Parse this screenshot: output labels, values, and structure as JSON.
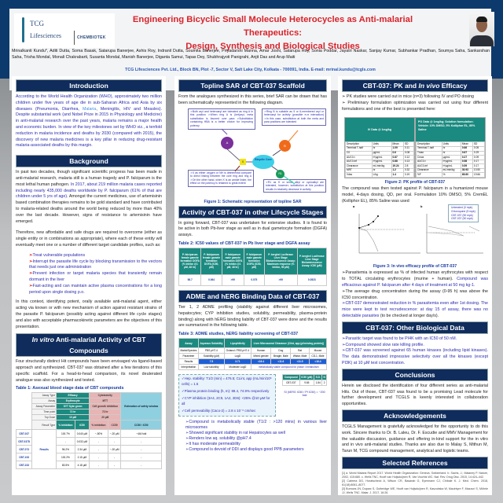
{
  "header": {
    "logo": {
      "line1": "TCG",
      "line2": "Lifesciences",
      "partner": "CHEMBIOTEK"
    },
    "title_line1": "Engineering Bicyclic Small Molecule Heterocycles as Anti-malarial Therapeutics:",
    "title_line2": "Design, Synthesis and Biological Studies",
    "authors": "Mrinalkanti Kundu*, Aditi Dutta, Soma Basak, Satarupa Banerjee, Ashis Roy, Indranil Dutta, Soumita Banerjee, Priyadarshi Manna, Amar Joshi, Satarupa Roy, Sonia Poddar, Jayatri Naskar, Sanjay Kumar, Subhankar Pradhan, Soumya Saha, Sankarshan Saha, Trisha Mondal, Monali Chakrabarti, Susanta Mondal, Manish Banerjee, Diganta Samui, Tapas Dey, Shubhrajyoti Panigrahi, Anjit Das and Arup Maiti",
    "affiliation": "TCG Lifesciences Pvt. Ltd., Block BN, Plot -7, Sector V, Salt Lake City, Kolkata - 700091, India. E-mail: mrinal.kundu@tcgls.com"
  },
  "intro": {
    "heading": "Introduction",
    "p1a": "According to the World Health Organization (WHO), approximately two million children under five years of age die in sub-Saharan Africa and Asia by six diseases (Pneumonia, Diarrhea, ",
    "p1link": "Malaria",
    "p1b": ", Meningitis, HIV and Measles). Despite substantial work (and Nobel Prize in 2015 in Physiology and Medicine) in anti-malarial research over the past years, malaria remains a major health and economic burden. In view of the key milestones set by WHO viz., a tenfold reduction in malaria incidence and deaths by 2030 (compared with 2015), the discovery of new malaria medicines is a key pillar in reducing drug-resistant malaria-associated deaths by this margin."
  },
  "background": {
    "heading": "Background",
    "p1a": "In past two decades, though significant scientific progress has been made in anti-malarial research, malaria still is a human tragedy and P. falciparum is the most lethal human pathogen. ",
    "p1b": "In 2017, about 219 million malaria cases reported including nearly 435,000 deaths worldwide by P. falciparum (61% of that are children under 5 yrs of age).",
    "p1c": " Amongst the current medicines, use of artemisinin based combination therapies remains to be gold standard and have contributed to malaria-related deaths around the world being reduced by more than 40% over the last decade. However, signs of resistance to artemisinin have emerged.",
    "p2": "Therefore, new affordable and safe drugs are required to overcome (either as single entity or in combinations as appropriate), where each of these entity will eventually meet one or a number of different target candidate profiles, such as:",
    "bullets": [
      "Treat vulnerable populations",
      "Interrupt the parasite life cycle by blocking transmission to the vectors that needs just one administration",
      "Prevent infection or target malaria species that transiently remain dormant in the liver",
      "Fast-acting and can maintain active plasma concentrations for a long period upon single dosing p.o."
    ],
    "p3": "In this context, identifying potent, orally available anti-malarial agent, either acting via known or with new mechanism of action against resistant strains of the parasite P. falciparum (possibly acting against different life cycle stages) and also with acceptable pharmacokinetic parameters are the objectives of this presentation."
  },
  "invitro": {
    "heading_italic": "In vitro",
    "heading_rest": " Anti-malarial Activity of CBT Compounds",
    "p1": "Four structurally distinct Hit compounds have been envisaged via ligand-based approach and synthesized. CBT-037 was obtained after a few iterations of this specific scaffold. For a head-to-head comparison, its novel deuterated analogue was also synthesized and tested.",
    "table_title": "Table 1: Asexual blood stage data of CBT compounds",
    "labels": [
      "Assay Type",
      "Assay",
      "Assay Parameter",
      "Time point",
      "Top Dose",
      "Result Type"
    ],
    "efficacy": [
      "Efficacy",
      "Erythrocyte",
      "SYT Sybr green",
      "72 hr",
      "10 µM"
    ],
    "cytotox": [
      "Cytotoxicity",
      "MTT",
      "Cell growth inhibition",
      "72 hr",
      "20 µM"
    ],
    "safety": "Estimation of safety window",
    "result_types": [
      "% Inhibition",
      "IC50",
      "% Inhibition",
      "CC50",
      "CC50 / IC50"
    ],
    "results_label": "Results",
    "rows": [
      {
        "name": "CBT-037",
        "v": [
          "100.7%",
          "0.040 µM",
          "~-50%",
          "~-20 µM",
          "~444 fold"
        ]
      },
      {
        "name": "CBT-037D",
        "v": [
          "-",
          "0.032 µM",
          "-",
          "-",
          "-"
        ]
      },
      {
        "name": "CBT-073",
        "v": [
          "96.2%",
          "2.34 µM",
          "-",
          "~-20 µM",
          "-"
        ]
      },
      {
        "name": "CBT-193",
        "v": [
          "100.2%",
          "2.15 µM",
          "-",
          "-",
          "-"
        ]
      },
      {
        "name": "CBT-233",
        "v": [
          "83.5%",
          "4.18 µM",
          "-",
          "-",
          "-"
        ]
      }
    ]
  },
  "sar": {
    "heading": "Topline SAR of CBT-037 Scaffold",
    "p1": "From the analogues synthesized in this series, brief SAR can be drawn that has been schematically represented in the following diagram.",
    "box_a": "➢Both aryl and heteroaryl are tolerated as ring A in this position ➢When ring A is (het)aryl, meta substitution is favored over para ➢Substitution containing HBA is a better choice for improving potency",
    "box_b": "➢Ring B is suitable as 5 or 6-membered aryl or heteroaryl for activity (possible π-π interaction) ➢In this case, substitution at both the meta and para positions are tolerated",
    "box_x": "➢X as either oxygen or NH is detrimental compare to direct linking between the core ring and ring A ➢On the other hand, when X is an amide linker, the effect on the potency is retained to great extent",
    "box_r1": "➢R1 as H or small alkyl or cycloalkyl are tolerated, however, substitution at this position results in relatively decrease in activity",
    "nodes": {
      "a": "A",
      "b": "B",
      "x": "X",
      "r1": "R1",
      "core": "Bicyclic Core"
    },
    "caption": "Figure 1: Schematic representation of topline SAR"
  },
  "lifecycle": {
    "heading": "Activity of CBT-037 in other Lifecycle Stages",
    "p1": "In going forward, CBT-037 was undertaken for extensive studies. It is found to be active in both Pb-liver stage as well as in dual gametocyte formation (DGFA) assays.",
    "table_title": "Table 2: IC50 values of CBT-037 in Pb liver stage and DGFA assay",
    "headers": [
      "P. falciparum female gamete formation DGFA (% Inhibn @1 µM, 48 hr)",
      "P. falciparum female gamete formation DGFA (IC50, µM)",
      "P. falciparum male gamete formation DGFA (% Inhibn @1 µM, 48 hr)",
      "P. falciparum male gamete formation DGFA (IC50, µM)",
      "P. berghei Luciferase Liver Stage Bioluminescence Assay: Maximum response (% Inhibn, 50 µM)",
      "P. berghei Luciferase Liver Stage Bioluminescence Assay: IC50 (µM)"
    ],
    "values": [
      "56.7",
      "0.064",
      ">99",
      "0.075",
      ">99",
      "0.0523"
    ]
  },
  "adme": {
    "heading": "ADME and hERG Binding Data of CBT-037",
    "p1": "Tier 1, 2 ADME profiling (stability against different liver microsomes, hepatocytes; CYP inhibition studies, solubility, permeability, plasma-protein binding) along with hERG binding liability of CBT-037 were done and the results are summarized in the following table.",
    "table_title": "Table 3: ADME studies, hERG liability screening of CBT-037",
    "h": [
      "Assay",
      "Aqueous Solubility",
      "Lipophilicity",
      "Liver Microsomal Clearance (Clint, app (µl/min/mg protein))"
    ],
    "row_labels": [
      "Matrix/Species",
      "Parameter",
      "Results",
      "Interpretation"
    ],
    "matrix": [
      "PBS pH7.4",
      "Octanol / PBS pH7.4",
      "Human",
      "Dog",
      "Rat",
      "Mouse"
    ],
    "parameter": [
      "Solubility (µM)",
      "LogD",
      "Mixed gender",
      "Beagle, Male",
      "Wistar, Male",
      "CD-1, Male"
    ],
    "results": [
      "7.5",
      "3.71",
      "<16.4",
      "<11.6",
      "<11.5",
      "<16.4"
    ],
    "interp": [
      "Low solubility",
      "Moderate LogD",
      "metabolically stable compound for phase I metabolism"
    ],
    "box": [
      "✓Hep. stability: T1/2 (min) = 476.5; CLint, app (mL/min/10⁶ cells) = 1.5",
      "✓Plasma protein binding (h, m): 88.4, 74.9% respectively",
      "✓CYP inhibition (3A4, 2C9, 1A2, 2D6): <25% @10 µM for all",
      "✓Cell permeability (Caco-2) = 2.8 x 10⁻⁶ cm/sec"
    ],
    "herg_headers": [
      "Compound",
      "IC50 (µM)",
      "S.D.",
      "N"
    ],
    "herg_row": [
      "CBT-037",
      "9.65",
      "1.84",
      "2"
    ],
    "herg_si": "SI (hERG IC50 / Pf IC50) = ~200 fold",
    "bullets": [
      "Compound is metabolically stable (T1/2 : >120 mins) in various liver microsomes",
      "Showed significant stability in rat Hepatocytes as well",
      "Renders low aq. solubility @pH7.4",
      "It has moderate permeability",
      "Compound is devoid of DDI and displays good PPB parameters"
    ]
  },
  "pk": {
    "heading_a": "CBT-037: PK and ",
    "heading_i": "In vivo",
    "heading_b": " Efficacy",
    "bullets": [
      "PK studies were carried out in mice (n=3) following IV and PO dosing",
      "Preliminary formulation optimization was carried out using four different formulations and one of the best is presented here:"
    ],
    "iv_title": "IV Data @ 1mg/kg",
    "po_title": "PO Data @ 1mg/kg; Solution formulation: Vehicle: 10% DMSO, 5% Kolliphor EL, 85% Saline",
    "cols": [
      "Description",
      "Units",
      "Mean",
      "SD"
    ],
    "iv_rows": [
      [
        "Terminal T-half",
        "hr",
        "1.09",
        "0.11"
      ],
      [
        "C0",
        "µg/mL",
        "0.6",
        "0.08"
      ],
      [
        "AUC0-t",
        "h*µg/mL",
        "0.87",
        "0.12"
      ],
      [
        "AUC0-inf",
        "h*µg/mL",
        "0.88",
        "0.13"
      ],
      [
        "Clearance",
        "mL/min/kg",
        "19.24",
        "2.8"
      ],
      [
        "MRT",
        "hr",
        "1.2",
        "0.32"
      ],
      [
        "Vdss",
        "L/kg",
        "1.4",
        "0.19"
      ]
    ],
    "po_rows": [
      [
        "Terminal T-half",
        "hr",
        "0.66",
        "0.05"
      ],
      [
        "Tmax",
        "hr",
        "0.67",
        "0.29"
      ],
      [
        "Cmax",
        "µg/mL",
        "0.27",
        "0.09"
      ],
      [
        "AUC0-t",
        "h*µg/mL",
        "0.58",
        "0.17"
      ],
      [
        "AUC0-inf",
        "h*µg/mL",
        "0.59",
        "0.17"
      ],
      [
        "Clearance",
        "mL/min/kg",
        "30.93",
        "10.50"
      ],
      [
        "%F",
        "%",
        "65.60",
        "19.66"
      ]
    ],
    "fig2": "Figure 2: PK profile of CBT-037",
    "p2": "The compound was then tested against P. falciparum in a humanized mouse model, 4-days dosing, QD, per oral. Formulation 10% DMSO, 5% CremEL (Kolliphor EL), 85% Saline was used",
    "panel_a": "a",
    "panel_b": "b",
    "legend": [
      "Untreated (0 mpk)",
      "Chloroquine (5 mpk)",
      "CBT-037 (50 mpk)",
      "CBT-037 (50 mpk)"
    ],
    "fig3": "Figure 3: In vivo efficacy profile of CBT-037",
    "r1a": "Parasitemia is expressed as % of infected human erythrocytes with respect to TOTAL circulating erythrocytes (murine + human). ",
    "r1b": "Compound was efficacious against P. falciparum after 4 days of treatment at 50 mg kg-1.",
    "r2": "The average drug concentration during the assay (0-95 h) was above the IC50 concentration.",
    "r3a": "CBT-037 demonstrated reduction in % parasitemia even after 1st dosing. The mice were kept to test recrudescence: at day 15 of assay, there was no detectable parasites",
    "r3b": " (to be checked at longer day/s)."
  },
  "other": {
    "heading": "CBT-037: Other Biological Data",
    "bullets": [
      "Parasitic target was found to be PI4K with an IC50 of 50 nM.",
      "Compound showed slow rate killing profile.",
      "CBT-037 was screened against 65 human kinases (including lipid kinases). The data demonstrated impressive selectivity over all the kinases (except PI3K) at 10 µM test concentration."
    ]
  },
  "conclusions": {
    "heading": "Conclusions",
    "p1": "Herein we disclosed the identification of four different series as anti-malarial Hits. Out of those, CBT-037 was found to be a promising Lead molecule for further development and TCGLS is keenly interested in collaboration opportunities."
  },
  "ack": {
    "heading": "Acknowledgements",
    "p1": "TCGLS Management is gratefully acknowledged for the opportunity to do this work. Sincere thanks to Dr. B. Laleu, Dr. F. Escudie and MMV Management for the valuable discussion, guidance and offering in-kind support for the in vitro and in vivo anti-malarial studies. Thanks are also due to Malay S, Mithun M, Tarun M, TCG compound management, analytical and logistic teams."
  },
  "refs": {
    "heading": "Selected References",
    "items": [
      "[1] a. World Malaria Report 2017. World Health Organization: Geneva, Switzerland. b. Sachs, J.; Malaney P. Nature, 2002, 415:680. c. Wells TNC, Hooft van Huijsduijnen R, Van Voorhis WC. Nat. Rev. Drug Disc. 2015, 14:424–442.",
      "[2] Cabrera DG, Horatscheck A, Wilson CR, Basarab G, Eyermann CJ, Chibale K. J. Med. Chem. 2018, 61(18):8061–8077.",
      "[3] Burrows JN, Duparc S, Gutteridge WE, Hooft van Huijsduijnen R, Kaszubska W, Macintyre F, Mazzuri S, Möhrle JJ, Wells TNC. Malar. J. 2017, 16:26."
    ]
  },
  "colors": {
    "navy": "#0f2c5c",
    "title_red": "#d9232b",
    "teal": "#1b8a80",
    "text_blue": "#2a2ab0"
  }
}
